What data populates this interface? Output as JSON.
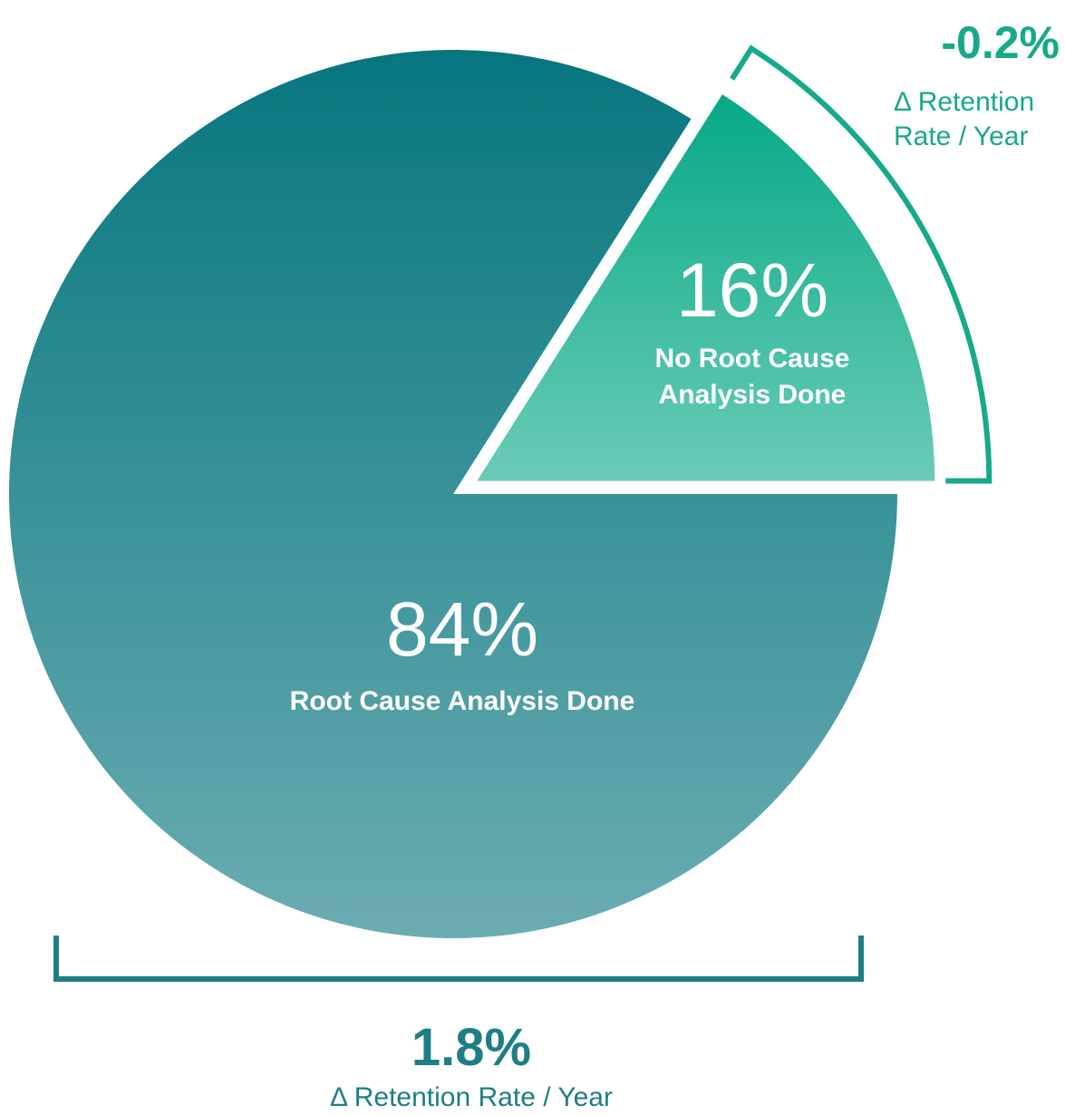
{
  "chart_data": {
    "type": "pie",
    "categories": [
      "No Root Cause Analysis Done",
      "Root Cause Analysis Done"
    ],
    "values": [
      16,
      84
    ],
    "value_labels": [
      "16%",
      "84%"
    ],
    "colors": [
      "#07a986",
      "#07767f"
    ],
    "annotations": [
      {
        "value": -0.2,
        "label": "-0.2%",
        "text": "Δ Retention Rate / Year"
      },
      {
        "value": 1.8,
        "label": "1.8%",
        "text": "Δ Retention Rate / Year"
      }
    ]
  }
}
